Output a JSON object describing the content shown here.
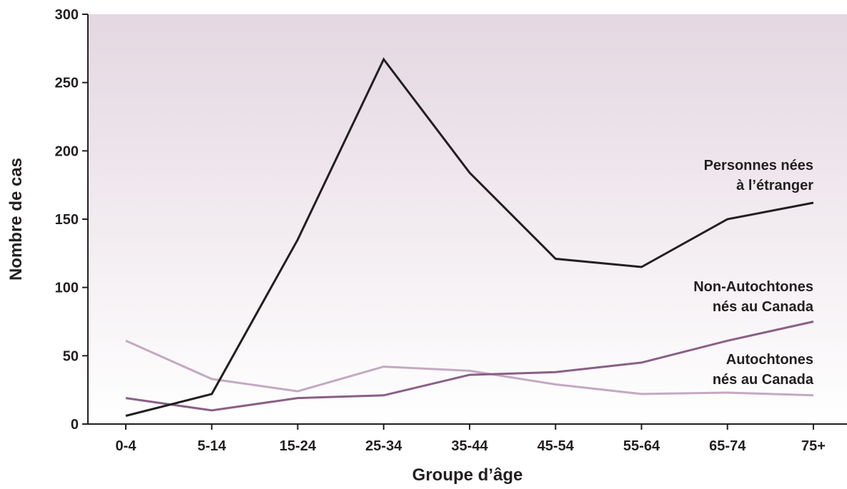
{
  "chart_data": {
    "type": "line",
    "title": "",
    "xlabel": "Groupe d’âge",
    "ylabel": "Nombre de cas",
    "categories": [
      "0-4",
      "5-14",
      "15-24",
      "25-34",
      "35-44",
      "45-54",
      "55-64",
      "65-74",
      "75+"
    ],
    "ylim": [
      0,
      300
    ],
    "yticks": [
      "0",
      "50",
      "100",
      "150",
      "200",
      "250",
      "300"
    ],
    "grid": false,
    "legend": "inline-right",
    "series": [
      {
        "name_lines": [
          "Personnes nées",
          "à l’étranger"
        ],
        "color": "#231f20",
        "values": [
          6,
          22,
          135,
          267,
          184,
          121,
          115,
          150,
          162
        ]
      },
      {
        "name_lines": [
          "Non-Autochtones",
          "nés au Canada"
        ],
        "color": "#8a5f86",
        "values": [
          19,
          10,
          19,
          21,
          36,
          38,
          45,
          61,
          75
        ]
      },
      {
        "name_lines": [
          "Autochtones",
          "nés au Canada"
        ],
        "color": "#c4a9c2",
        "values": [
          61,
          33,
          24,
          42,
          39,
          29,
          22,
          23,
          21
        ]
      }
    ],
    "background_gradient": [
      "#e4d7e1",
      "#ffffff"
    ]
  }
}
